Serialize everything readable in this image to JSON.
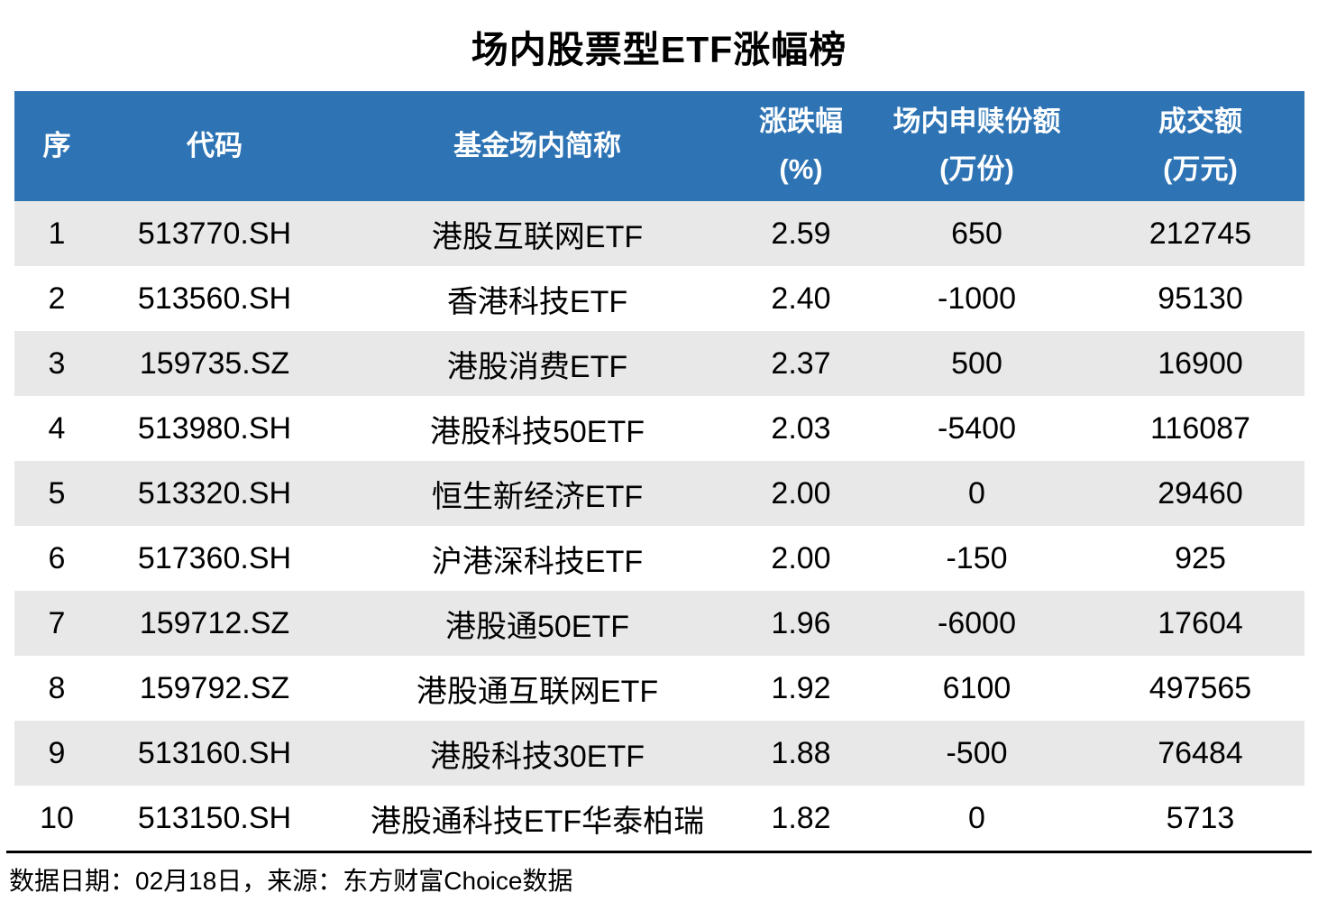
{
  "title": "场内股票型ETF涨幅榜",
  "colors": {
    "header_bg": "#2E74B5",
    "header_text": "#FFFFFF",
    "row_alt_bg": "#E8E8E8",
    "row_bg": "#FFFFFF",
    "body_text": "#000000"
  },
  "chart_data": {
    "type": "table",
    "title": "场内股票型ETF涨幅榜",
    "columns": [
      {
        "label": "序",
        "sub": ""
      },
      {
        "label": "代码",
        "sub": ""
      },
      {
        "label": "基金场内简称",
        "sub": ""
      },
      {
        "label": "涨跌幅",
        "sub": "(%)"
      },
      {
        "label": "场内申赎份额",
        "sub": "(万份)"
      },
      {
        "label": "成交额",
        "sub": "(万元)"
      }
    ],
    "rows": [
      [
        "1",
        "513770.SH",
        "港股互联网ETF",
        "2.59",
        "650",
        "212745"
      ],
      [
        "2",
        "513560.SH",
        "香港科技ETF",
        "2.40",
        "-1000",
        "95130"
      ],
      [
        "3",
        "159735.SZ",
        "港股消费ETF",
        "2.37",
        "500",
        "16900"
      ],
      [
        "4",
        "513980.SH",
        "港股科技50ETF",
        "2.03",
        "-5400",
        "116087"
      ],
      [
        "5",
        "513320.SH",
        "恒生新经济ETF",
        "2.00",
        "0",
        "29460"
      ],
      [
        "6",
        "517360.SH",
        "沪港深科技ETF",
        "2.00",
        "-150",
        "925"
      ],
      [
        "7",
        "159712.SZ",
        "港股通50ETF",
        "1.96",
        "-6000",
        "17604"
      ],
      [
        "8",
        "159792.SZ",
        "港股通互联网ETF",
        "1.92",
        "6100",
        "497565"
      ],
      [
        "9",
        "513160.SH",
        "港股科技30ETF",
        "1.88",
        "-500",
        "76484"
      ],
      [
        "10",
        "513150.SH",
        "港股通科技ETF华泰柏瑞",
        "1.82",
        "0",
        "5713"
      ]
    ]
  },
  "footer": {
    "text": "数据日期：02月18日，来源：东方财富Choice数据"
  }
}
